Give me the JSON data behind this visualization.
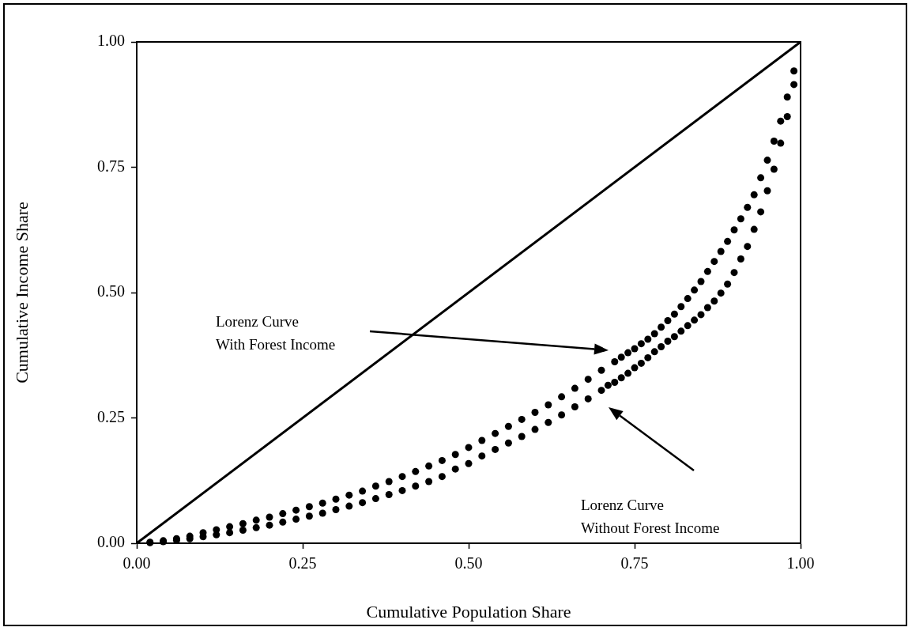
{
  "chart_data": {
    "type": "scatter",
    "xlabel": "Cumulative Population Share",
    "ylabel": "Cumulative Income Share",
    "xlim": [
      0,
      1
    ],
    "ylim": [
      0,
      1
    ],
    "xticks": [
      {
        "value": 0,
        "label": "0.00"
      },
      {
        "value": 0.25,
        "label": "0.25"
      },
      {
        "value": 0.5,
        "label": "0.50"
      },
      {
        "value": 0.75,
        "label": "0.75"
      },
      {
        "value": 1,
        "label": "1.00"
      }
    ],
    "yticks": [
      {
        "value": 0,
        "label": "0.00"
      },
      {
        "value": 0.25,
        "label": "0.25"
      },
      {
        "value": 0.5,
        "label": "0.50"
      },
      {
        "value": 0.75,
        "label": "0.75"
      },
      {
        "value": 1,
        "label": "1.00"
      }
    ],
    "grid": false,
    "legend": false,
    "marker": "circle",
    "annotations": [
      "Lorenz Curve\nWith Forest Income",
      "Lorenz Curve\nWithout Forest Income"
    ],
    "series": [
      {
        "type": "line",
        "color": "#000000",
        "marker": "none",
        "x": [
          0,
          1
        ],
        "values": [
          0,
          1
        ]
      },
      {
        "color": "#000000",
        "x": [
          0.02,
          0.04,
          0.06,
          0.08,
          0.1,
          0.12,
          0.14,
          0.16,
          0.18,
          0.2,
          0.22,
          0.24,
          0.26,
          0.28,
          0.3,
          0.32,
          0.34,
          0.36,
          0.38,
          0.4,
          0.42,
          0.44,
          0.46,
          0.48,
          0.5,
          0.52,
          0.54,
          0.56,
          0.58,
          0.6,
          0.62,
          0.64,
          0.66,
          0.68,
          0.7,
          0.72,
          0.73,
          0.74,
          0.75,
          0.76,
          0.77,
          0.78,
          0.79,
          0.8,
          0.81,
          0.82,
          0.83,
          0.84,
          0.85,
          0.86,
          0.87,
          0.88,
          0.89,
          0.9,
          0.91,
          0.92,
          0.93,
          0.94,
          0.95,
          0.96,
          0.97,
          0.98,
          0.99
        ],
        "values": [
          0.002,
          0.005,
          0.009,
          0.014,
          0.021,
          0.027,
          0.033,
          0.039,
          0.046,
          0.052,
          0.059,
          0.066,
          0.073,
          0.08,
          0.088,
          0.096,
          0.104,
          0.114,
          0.123,
          0.133,
          0.143,
          0.154,
          0.165,
          0.177,
          0.191,
          0.205,
          0.219,
          0.233,
          0.247,
          0.261,
          0.276,
          0.292,
          0.309,
          0.327,
          0.345,
          0.362,
          0.371,
          0.38,
          0.388,
          0.398,
          0.407,
          0.418,
          0.431,
          0.444,
          0.457,
          0.472,
          0.488,
          0.505,
          0.522,
          0.542,
          0.562,
          0.582,
          0.602,
          0.625,
          0.647,
          0.67,
          0.695,
          0.729,
          0.764,
          0.802,
          0.842,
          0.89,
          0.942
        ]
      },
      {
        "color": "#000000",
        "x": [
          0.02,
          0.04,
          0.06,
          0.08,
          0.1,
          0.12,
          0.14,
          0.16,
          0.18,
          0.2,
          0.22,
          0.24,
          0.26,
          0.28,
          0.3,
          0.32,
          0.34,
          0.36,
          0.38,
          0.4,
          0.42,
          0.44,
          0.46,
          0.48,
          0.5,
          0.52,
          0.54,
          0.56,
          0.58,
          0.6,
          0.62,
          0.64,
          0.66,
          0.68,
          0.7,
          0.71,
          0.72,
          0.73,
          0.74,
          0.75,
          0.76,
          0.77,
          0.78,
          0.79,
          0.8,
          0.81,
          0.82,
          0.83,
          0.84,
          0.85,
          0.86,
          0.87,
          0.88,
          0.89,
          0.9,
          0.91,
          0.92,
          0.93,
          0.94,
          0.95,
          0.96,
          0.97,
          0.98,
          0.99
        ],
        "values": [
          0.001,
          0.003,
          0.006,
          0.009,
          0.013,
          0.017,
          0.021,
          0.026,
          0.031,
          0.036,
          0.042,
          0.048,
          0.054,
          0.06,
          0.067,
          0.074,
          0.081,
          0.089,
          0.097,
          0.105,
          0.114,
          0.123,
          0.133,
          0.148,
          0.159,
          0.174,
          0.187,
          0.2,
          0.213,
          0.227,
          0.241,
          0.256,
          0.272,
          0.288,
          0.305,
          0.315,
          0.321,
          0.33,
          0.339,
          0.35,
          0.359,
          0.37,
          0.382,
          0.392,
          0.403,
          0.412,
          0.423,
          0.434,
          0.445,
          0.456,
          0.47,
          0.483,
          0.499,
          0.517,
          0.54,
          0.567,
          0.592,
          0.626,
          0.661,
          0.703,
          0.746,
          0.798,
          0.851,
          0.915
        ]
      }
    ]
  }
}
